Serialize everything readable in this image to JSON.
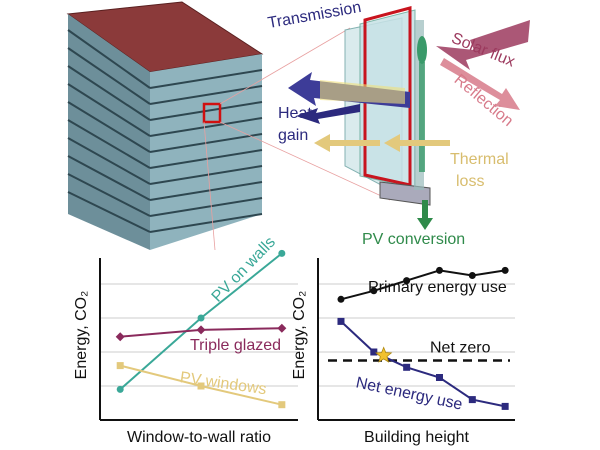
{
  "diagram": {
    "transmission": "Transmission",
    "solar_flux": "Solar flux",
    "reflection": "Reflection",
    "heat_gain": [
      "Heat",
      "gain"
    ],
    "thermal_loss": [
      "Thermal",
      "loss"
    ],
    "pv_conversion": "PV conversion"
  },
  "chart_data": [
    {
      "type": "line",
      "x_label": "Window-to-wall ratio",
      "y_label": "Energy, CO₂",
      "x": [
        1,
        2,
        3
      ],
      "xlim": [
        0.75,
        3.2
      ],
      "ylim": [
        0,
        10
      ],
      "yticks": [
        2,
        4,
        6,
        8
      ],
      "grid": true,
      "series": [
        {
          "name": "PV on walls",
          "color": "#3aa898",
          "marker": "circle",
          "values": [
            1.8,
            6.0,
            9.8
          ]
        },
        {
          "name": "Triple glazed",
          "color": "#8a2a5c",
          "marker": "diamond",
          "values": [
            4.9,
            5.3,
            5.4
          ]
        },
        {
          "name": "PV windows",
          "color": "#e3c97c",
          "marker": "square",
          "values": [
            3.2,
            2.0,
            0.9
          ]
        }
      ]
    },
    {
      "type": "line",
      "x_label": "Building height",
      "y_label": "Energy, CO₂",
      "x": [
        1,
        2,
        3,
        4,
        5,
        6
      ],
      "xlim": [
        0.3,
        6.3
      ],
      "ylim": [
        0,
        10
      ],
      "yticks": [
        2,
        4,
        6,
        8
      ],
      "grid": true,
      "series": [
        {
          "name": "Primary energy use",
          "color": "#111111",
          "marker": "circle",
          "values": [
            7.1,
            7.6,
            8.2,
            8.8,
            8.5,
            8.8
          ]
        },
        {
          "name": "Net energy use",
          "color": "#2c2a7e",
          "marker": "square",
          "values": [
            5.8,
            4.0,
            3.1,
            2.5,
            1.2,
            0.8
          ]
        }
      ],
      "reference_line": {
        "value": 3.5,
        "label": "Net zero"
      },
      "highlight": {
        "x": 2.3,
        "y": 3.8,
        "color": "#f2c12e"
      }
    }
  ]
}
